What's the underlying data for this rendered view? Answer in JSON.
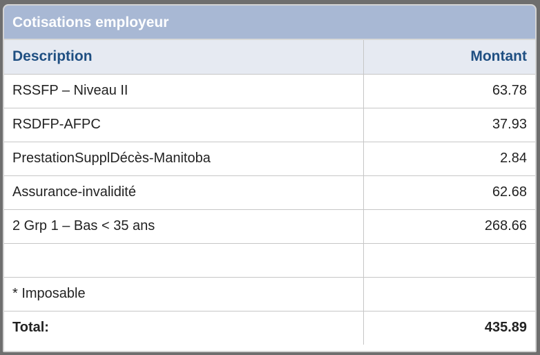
{
  "panel": {
    "title": "Cotisations employeur"
  },
  "table": {
    "headers": {
      "description": "Description",
      "amount": "Montant"
    },
    "rows": [
      {
        "description": "RSSFP – Niveau II",
        "amount": "63.78"
      },
      {
        "description": "RSDFP-AFPC",
        "amount": "37.93"
      },
      {
        "description": "PrestationSupplDécès-Manitoba",
        "amount": "2.84"
      },
      {
        "description": "Assurance-invalidité",
        "amount": "62.68"
      },
      {
        "description": "2 Grp 1 – Bas < 35 ans",
        "amount": "268.66"
      },
      {
        "description": "",
        "amount": ""
      },
      {
        "description": "* Imposable",
        "amount": ""
      }
    ],
    "total": {
      "label": "Total:",
      "amount": "435.89"
    }
  },
  "colors": {
    "title_bar": "#a8b8d4",
    "header_bg": "#e6eaf2",
    "header_text": "#1f4f82"
  }
}
